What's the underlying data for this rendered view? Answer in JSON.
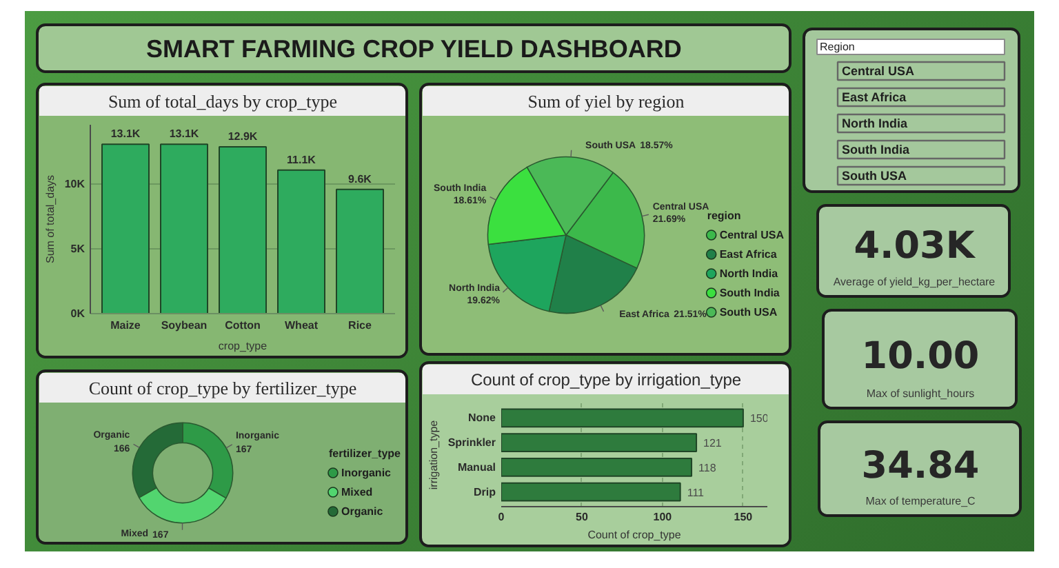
{
  "chart_data": [
    {
      "type": "other",
      "title": "SMART FARMING CROP YIELD DASHBOARD"
    },
    {
      "type": "bar",
      "title": "Sum of total_days by crop_type",
      "xlabel": "crop_type",
      "ylabel": "Sum of total_days",
      "categories": [
        "Maize",
        "Soybean",
        "Cotton",
        "Wheat",
        "Rice"
      ],
      "values": [
        13100,
        13100,
        12900,
        11100,
        9600
      ],
      "value_labels": [
        "13.1K",
        "13.1K",
        "12.9K",
        "11.1K",
        "9.6K"
      ],
      "color": "#2eab5e",
      "ylim": [
        0,
        14600
      ],
      "yticks": [
        {
          "value": 0,
          "label": "0K"
        },
        {
          "value": 5000,
          "label": "5K"
        },
        {
          "value": 10000,
          "label": "10K"
        }
      ],
      "grid": "y"
    },
    {
      "type": "pie",
      "title": "Sum of yiel by region",
      "legend_title": "region",
      "categories": [
        "Central USA",
        "East Africa",
        "North India",
        "South India",
        "South USA"
      ],
      "values": [
        21.69,
        21.51,
        19.62,
        18.61,
        18.57
      ],
      "value_labels": [
        "21.69%",
        "21.51%",
        "19.62%",
        "18.61%",
        "18.57%"
      ],
      "colors": [
        "#3cb94b",
        "#208049",
        "#1ea55d",
        "#3be03f",
        "#4bb957"
      ],
      "legend": "right"
    },
    {
      "type": "donut",
      "title": "Count of crop_type by fertilizer_type",
      "legend_title": "fertilizer_type",
      "categories": [
        "Inorganic",
        "Mixed",
        "Organic"
      ],
      "values": [
        167,
        167,
        166
      ],
      "data_labels": true,
      "colors": [
        "#2e9a47",
        "#52d56f",
        "#246a37"
      ],
      "legend": "right"
    },
    {
      "type": "bar",
      "orientation": "horizontal",
      "title": "Count of crop_type by irrigation_type",
      "xlabel": "Count of crop_type",
      "ylabel": "irrigation_type",
      "categories": [
        "None",
        "Sprinkler",
        "Manual",
        "Drip"
      ],
      "values": [
        150,
        121,
        118,
        111
      ],
      "data_labels": true,
      "color": "#2e7b3d",
      "xlim": [
        0,
        165
      ],
      "xticks": [
        0,
        50,
        100,
        150
      ],
      "grid": "x"
    },
    {
      "type": "other",
      "title": "Region",
      "annotations": [
        "Central USA",
        "East Africa",
        "North India",
        "South India",
        "South USA"
      ]
    },
    {
      "type": "other",
      "annotations": [
        "4.03K",
        "Average of yield_kg_per_hectare"
      ]
    },
    {
      "type": "other",
      "annotations": [
        "10.00",
        "Max of sunlight_hours"
      ]
    },
    {
      "type": "other",
      "annotations": [
        "34.84",
        "Max of temperature_C"
      ]
    }
  ]
}
